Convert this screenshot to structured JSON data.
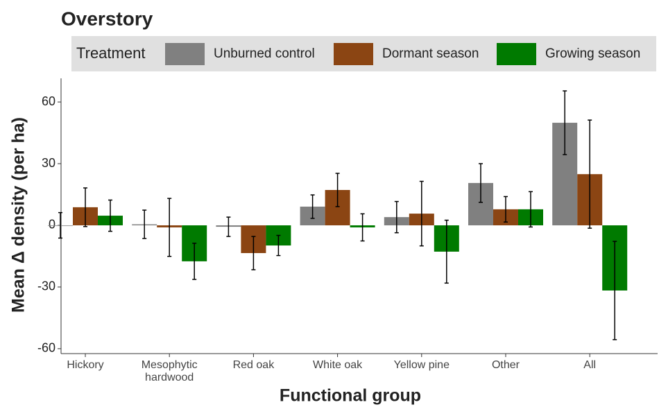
{
  "chart_data": {
    "type": "bar",
    "title": "Overstory",
    "xlabel": "Functional group",
    "ylabel": "Mean Δ density (per ha)",
    "legend_title": "Treatment",
    "legend_position": "top",
    "categories": [
      "Hickory",
      "Mesophytic hardwood",
      "Red oak",
      "White oak",
      "Yellow pine",
      "Other",
      "All"
    ],
    "series": [
      {
        "name": "Unburned control",
        "color": "#808080",
        "values": [
          0,
          0.5,
          -0.7,
          9.1,
          4,
          20.6,
          49.9
        ],
        "errors": [
          6.2,
          6.9,
          4.7,
          5.7,
          7.6,
          9.4,
          15.5
        ]
      },
      {
        "name": "Dormant season",
        "color": "#8b4513",
        "values": [
          8.8,
          -1,
          -13.5,
          17.2,
          5.7,
          7.8,
          24.9
        ],
        "errors": [
          9.4,
          14.1,
          8.1,
          8.1,
          15.7,
          6.2,
          26.3
        ]
      },
      {
        "name": "Growing season",
        "color": "#007a00",
        "values": [
          4.7,
          -17.5,
          -9.8,
          -1,
          -12.8,
          7.8,
          -31.7
        ],
        "errors": [
          7.6,
          8.8,
          4.9,
          6.6,
          15.3,
          8.6,
          23.9
        ]
      }
    ],
    "ylim": [
      -62.4,
      71.5
    ],
    "yticks": [
      -60,
      -30,
      0,
      30,
      60
    ],
    "grid": false
  }
}
